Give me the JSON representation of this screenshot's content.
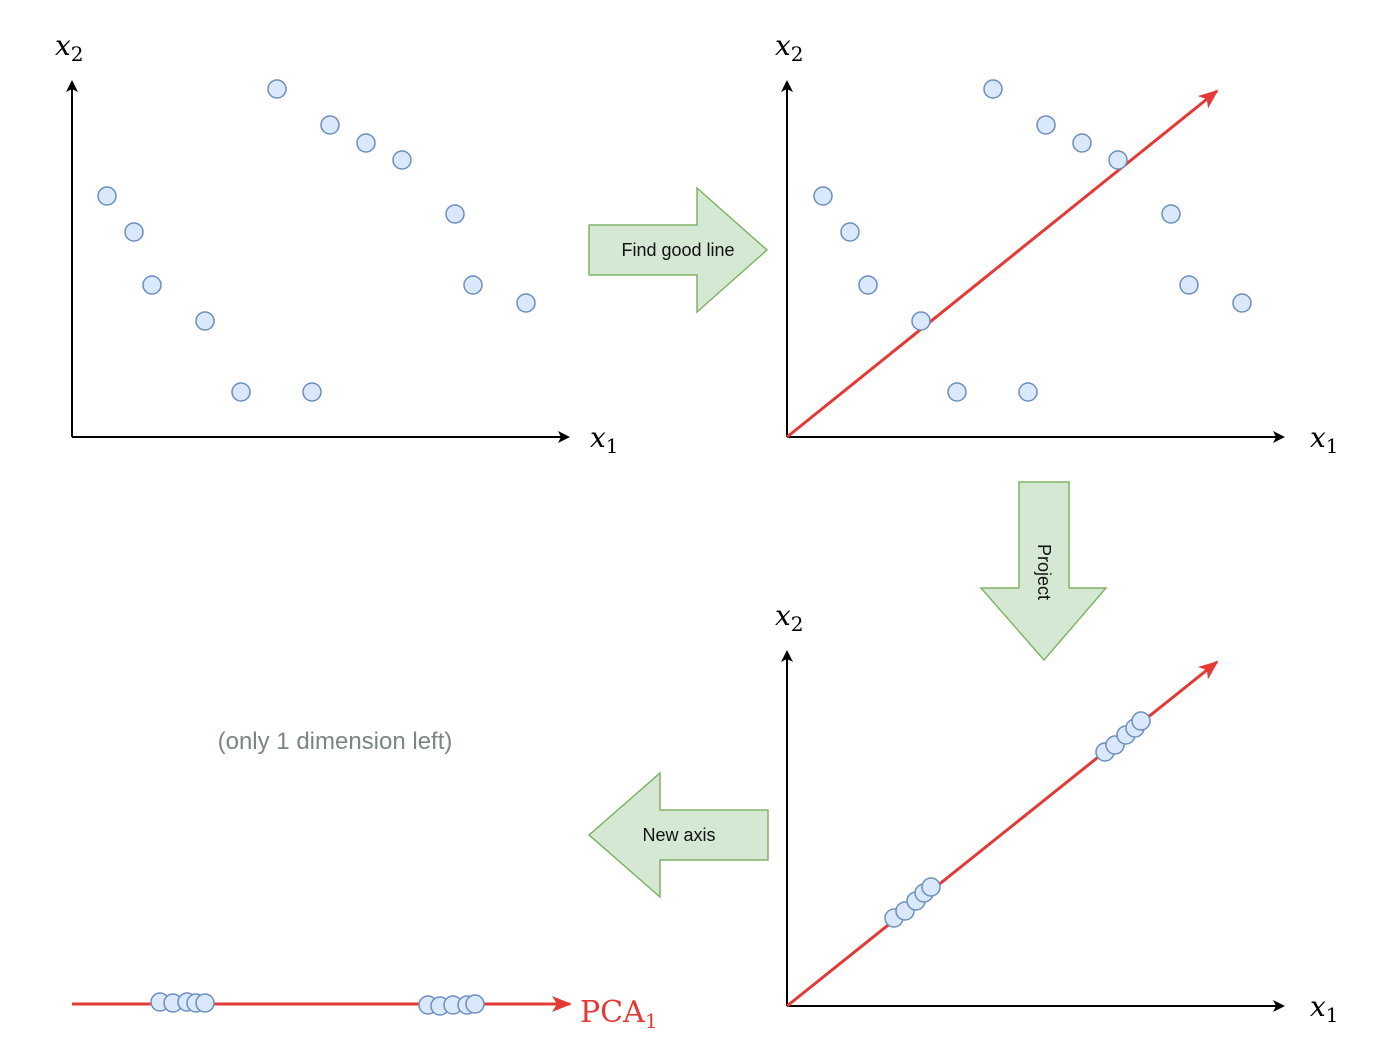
{
  "colors": {
    "point_fill": "#dae8fc",
    "point_stroke": "#6c8ebf",
    "line": "#e53935",
    "arrow_fill": "#d5e8d4",
    "arrow_stroke": "#82b366",
    "axis": "#000000",
    "note": "#7a8585"
  },
  "axes": {
    "x_label": "x",
    "x_sub": "1",
    "y_label": "x",
    "y_sub": "2"
  },
  "arrows": {
    "find": "Find good line",
    "project": "Project",
    "new_axis": "New axis"
  },
  "note": "(only 1 dimension left)",
  "pca_label": "PCA",
  "pca_sub": "1"
}
